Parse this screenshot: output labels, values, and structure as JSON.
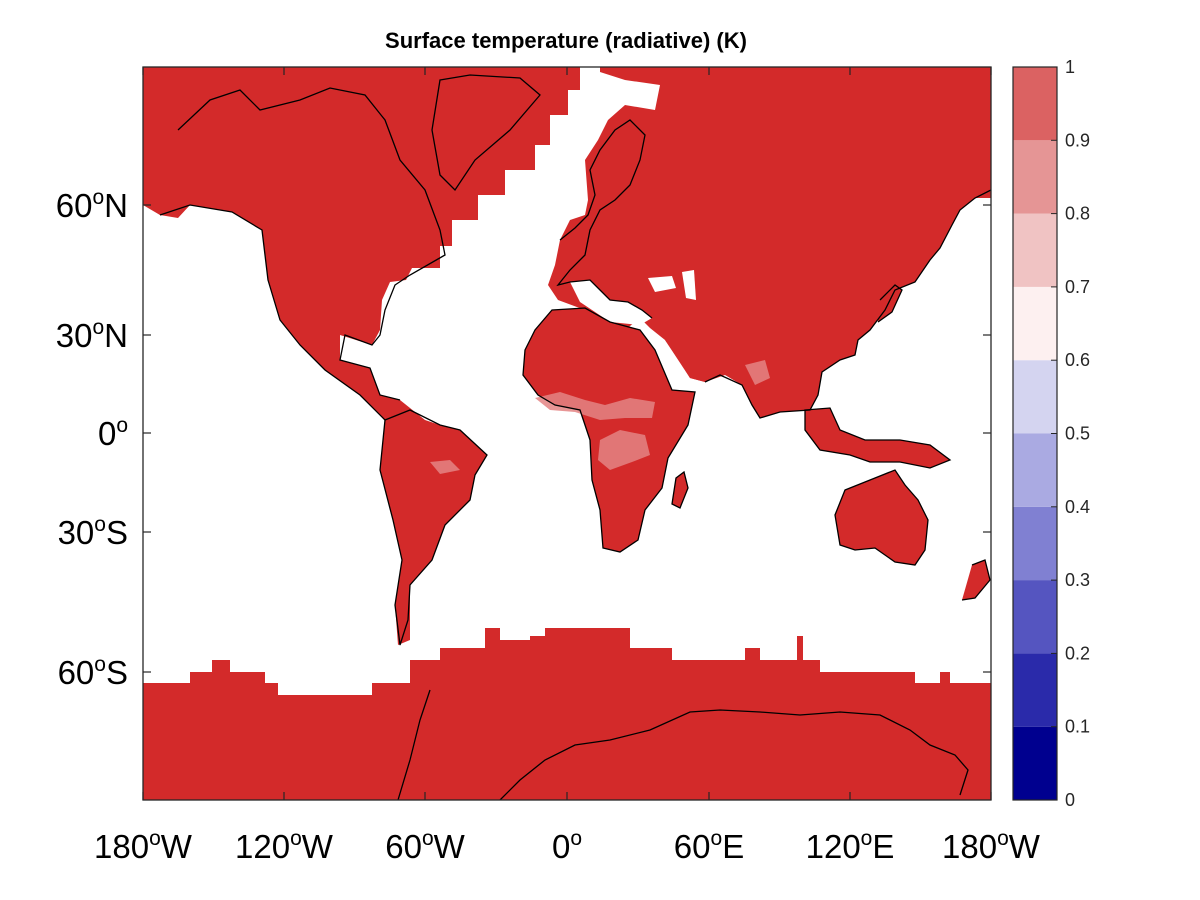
{
  "chart_data": {
    "type": "heatmap",
    "title": "Surface temperature (radiative) (K)",
    "projection": "Mercator",
    "grid": false,
    "legend_position": "right colorbar",
    "x_ticks": [
      {
        "lon": -180,
        "deg": "180",
        "suffix": "W"
      },
      {
        "lon": -120,
        "deg": "120",
        "suffix": "W"
      },
      {
        "lon": -60,
        "deg": "60",
        "suffix": "W"
      },
      {
        "lon": 0,
        "deg": "0",
        "suffix": ""
      },
      {
        "lon": 60,
        "deg": "60",
        "suffix": "E"
      },
      {
        "lon": 120,
        "deg": "120",
        "suffix": "E"
      },
      {
        "lon": 180,
        "deg": "180",
        "suffix": "W"
      }
    ],
    "y_ticks": [
      {
        "lat": 60,
        "deg": "60",
        "suffix": "N"
      },
      {
        "lat": 30,
        "deg": "30",
        "suffix": "N"
      },
      {
        "lat": 0,
        "deg": "0",
        "suffix": ""
      },
      {
        "lat": -30,
        "deg": "30",
        "suffix": "S"
      },
      {
        "lat": -60,
        "deg": "60",
        "suffix": "S"
      }
    ],
    "colorbar": {
      "range": [
        0,
        1
      ],
      "tick_labels": [
        "0",
        "0.1",
        "0.2",
        "0.3",
        "0.4",
        "0.5",
        "0.6",
        "0.7",
        "0.8",
        "0.9",
        "1"
      ],
      "colors": [
        "#00008f",
        "#2a2aaa",
        "#5555c0",
        "#8080d2",
        "#aaaae2",
        "#d4d4f0",
        "#fdf0f0",
        "#f0c3c3",
        "#e59595",
        "#db6262",
        "#d32a2a",
        "#d12626"
      ]
    },
    "field": {
      "land_value": 0.95,
      "land_color": "#d32a2a",
      "tropical_patch_value": 0.85,
      "tropical_patch_color": "#e48484",
      "ocean_color": "#ffffff"
    }
  }
}
